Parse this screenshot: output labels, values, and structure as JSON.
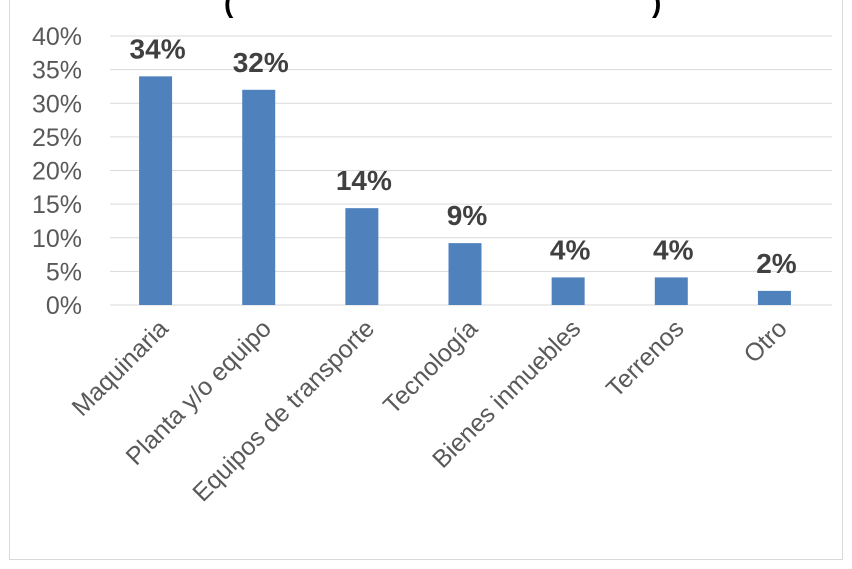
{
  "chart_data": {
    "type": "bar",
    "title_fragments": [
      "(",
      ")"
    ],
    "categories": [
      "Maquinaria",
      "Planta y/o equipo",
      "Equipos de transporte",
      "Tecnología",
      "Bienes inmuebles",
      "Terrenos",
      "Otro"
    ],
    "values": [
      34,
      32,
      14.4,
      9.2,
      4.1,
      4.1,
      2.1
    ],
    "data_labels": [
      "34%",
      "32%",
      "14%",
      "9%",
      "4%",
      "4%",
      "2%"
    ],
    "y_ticks": [
      "0%",
      "5%",
      "10%",
      "15%",
      "20%",
      "25%",
      "30%",
      "35%",
      "40%"
    ],
    "ylim": [
      0,
      40
    ],
    "grid": true,
    "bar_color": "#4f81bd",
    "grid_color": "#d9d9d9"
  }
}
